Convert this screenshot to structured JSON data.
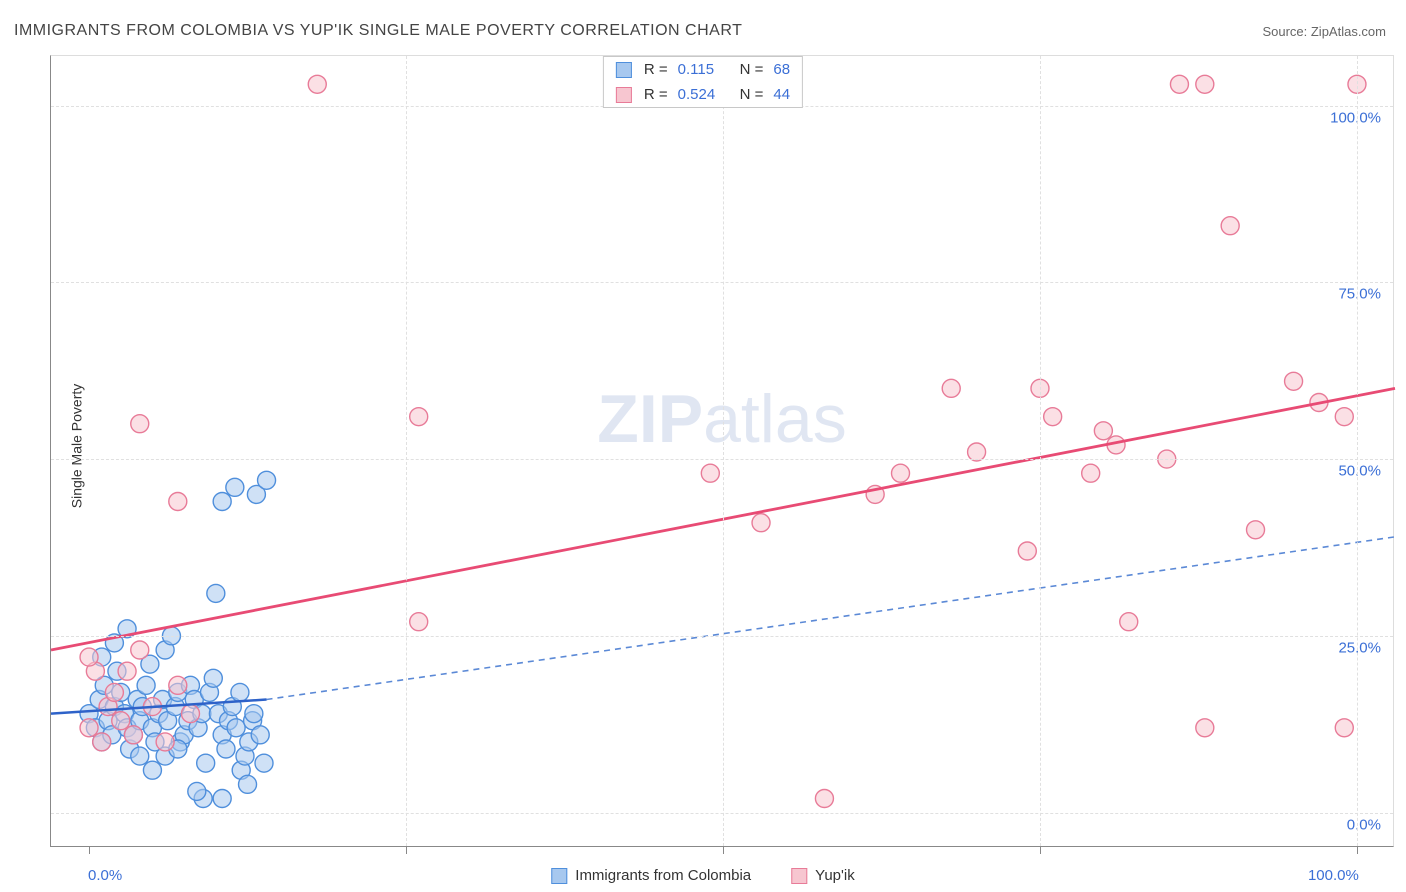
{
  "title": "IMMIGRANTS FROM COLOMBIA VS YUP'IK SINGLE MALE POVERTY CORRELATION CHART",
  "source_label": "Source: ",
  "source_name": "ZipAtlas.com",
  "ylabel": "Single Male Poverty",
  "watermark_bold": "ZIP",
  "watermark_rest": "atlas",
  "chart": {
    "type": "scatter",
    "xlim": [
      -3,
      103
    ],
    "ylim": [
      -5,
      107
    ],
    "x_ticks": [
      0,
      25,
      50,
      75,
      100
    ],
    "y_ticks": [
      0,
      25,
      50,
      75,
      100
    ],
    "y_tick_labels": [
      "0.0%",
      "25.0%",
      "50.0%",
      "75.0%",
      "100.0%"
    ],
    "x_tick_labels": {
      "0": "0.0%",
      "100": "100.0%"
    },
    "grid_color": "#e0e0e0",
    "background_color": "#ffffff",
    "marker_radius": 9,
    "marker_stroke_width": 1.4,
    "series": [
      {
        "name": "Immigrants from Colombia",
        "color_fill": "#a7c8ef",
        "color_stroke": "#4f8fdc",
        "fill_opacity": 0.55,
        "R": "0.115",
        "N": "68",
        "trend": {
          "x1": -3,
          "y1": 14,
          "x2": 14,
          "y2": 16,
          "color": "#2e62c9",
          "width": 2.5,
          "dash": "none"
        },
        "trend_ext": {
          "x1": 14,
          "y1": 16,
          "x2": 103,
          "y2": 39,
          "color": "#5b89d6",
          "width": 1.6,
          "dash": "6,5"
        },
        "points": [
          [
            0,
            14
          ],
          [
            0.5,
            12
          ],
          [
            1,
            10
          ],
          [
            0.8,
            16
          ],
          [
            1.2,
            18
          ],
          [
            1.5,
            13
          ],
          [
            1.8,
            11
          ],
          [
            2,
            15
          ],
          [
            2.2,
            20
          ],
          [
            2.5,
            17
          ],
          [
            2.8,
            14
          ],
          [
            3,
            12
          ],
          [
            3.2,
            9
          ],
          [
            3.5,
            11
          ],
          [
            3.8,
            16
          ],
          [
            4,
            13
          ],
          [
            4.2,
            15
          ],
          [
            4.5,
            18
          ],
          [
            4.8,
            21
          ],
          [
            5,
            12
          ],
          [
            5.2,
            10
          ],
          [
            5.5,
            14
          ],
          [
            5.8,
            16
          ],
          [
            6,
            23
          ],
          [
            6.2,
            13
          ],
          [
            6.5,
            25
          ],
          [
            6.8,
            15
          ],
          [
            7,
            17
          ],
          [
            7.2,
            10
          ],
          [
            7.5,
            11
          ],
          [
            7.8,
            13
          ],
          [
            8,
            18
          ],
          [
            8.3,
            16
          ],
          [
            8.6,
            12
          ],
          [
            8.9,
            14
          ],
          [
            9.2,
            7
          ],
          [
            9.5,
            17
          ],
          [
            9.8,
            19
          ],
          [
            10,
            31
          ],
          [
            10.2,
            14
          ],
          [
            10.5,
            11
          ],
          [
            10.8,
            9
          ],
          [
            11,
            13
          ],
          [
            11.3,
            15
          ],
          [
            11.6,
            12
          ],
          [
            11.9,
            17
          ],
          [
            12,
            6
          ],
          [
            12.3,
            8
          ],
          [
            12.6,
            10
          ],
          [
            12.9,
            13
          ],
          [
            13,
            14
          ],
          [
            13.2,
            45
          ],
          [
            13.5,
            11
          ],
          [
            13.8,
            7
          ],
          [
            14,
            47
          ],
          [
            10.5,
            44
          ],
          [
            11.5,
            46
          ],
          [
            1,
            22
          ],
          [
            2,
            24
          ],
          [
            3,
            26
          ],
          [
            4,
            8
          ],
          [
            5,
            6
          ],
          [
            6,
            8
          ],
          [
            7,
            9
          ],
          [
            10.5,
            2
          ],
          [
            9,
            2
          ],
          [
            12.5,
            4
          ],
          [
            8.5,
            3
          ]
        ]
      },
      {
        "name": "Yup'ik",
        "color_fill": "#f7c6d0",
        "color_stroke": "#e87b98",
        "fill_opacity": 0.55,
        "R": "0.524",
        "N": "44",
        "trend": {
          "x1": -3,
          "y1": 23,
          "x2": 103,
          "y2": 60,
          "color": "#e84b74",
          "width": 2.8,
          "dash": "none"
        },
        "points": [
          [
            0,
            12
          ],
          [
            0.5,
            20
          ],
          [
            1,
            10
          ],
          [
            1.5,
            15
          ],
          [
            2,
            17
          ],
          [
            2.5,
            13
          ],
          [
            3,
            20
          ],
          [
            3.5,
            11
          ],
          [
            4,
            23
          ],
          [
            5,
            15
          ],
          [
            6,
            10
          ],
          [
            7,
            18
          ],
          [
            8,
            14
          ],
          [
            4,
            55
          ],
          [
            7,
            44
          ],
          [
            0,
            22
          ],
          [
            18,
            103
          ],
          [
            26,
            27
          ],
          [
            26,
            56
          ],
          [
            49,
            48
          ],
          [
            53,
            41
          ],
          [
            58,
            2
          ],
          [
            62,
            45
          ],
          [
            64,
            48
          ],
          [
            68,
            60
          ],
          [
            70,
            51
          ],
          [
            74,
            37
          ],
          [
            75,
            60
          ],
          [
            76,
            56
          ],
          [
            79,
            48
          ],
          [
            80,
            54
          ],
          [
            81,
            52
          ],
          [
            82,
            27
          ],
          [
            85,
            50
          ],
          [
            86,
            103
          ],
          [
            88,
            103
          ],
          [
            90,
            83
          ],
          [
            92,
            40
          ],
          [
            95,
            61
          ],
          [
            97,
            58
          ],
          [
            99,
            56
          ],
          [
            100,
            103
          ],
          [
            99,
            12
          ],
          [
            88,
            12
          ]
        ]
      }
    ]
  },
  "legend_bottom": [
    {
      "label": "Immigrants from Colombia",
      "fill": "#a7c8ef",
      "stroke": "#4f8fdc"
    },
    {
      "label": "Yup'ik",
      "fill": "#f7c6d0",
      "stroke": "#e87b98"
    }
  ]
}
